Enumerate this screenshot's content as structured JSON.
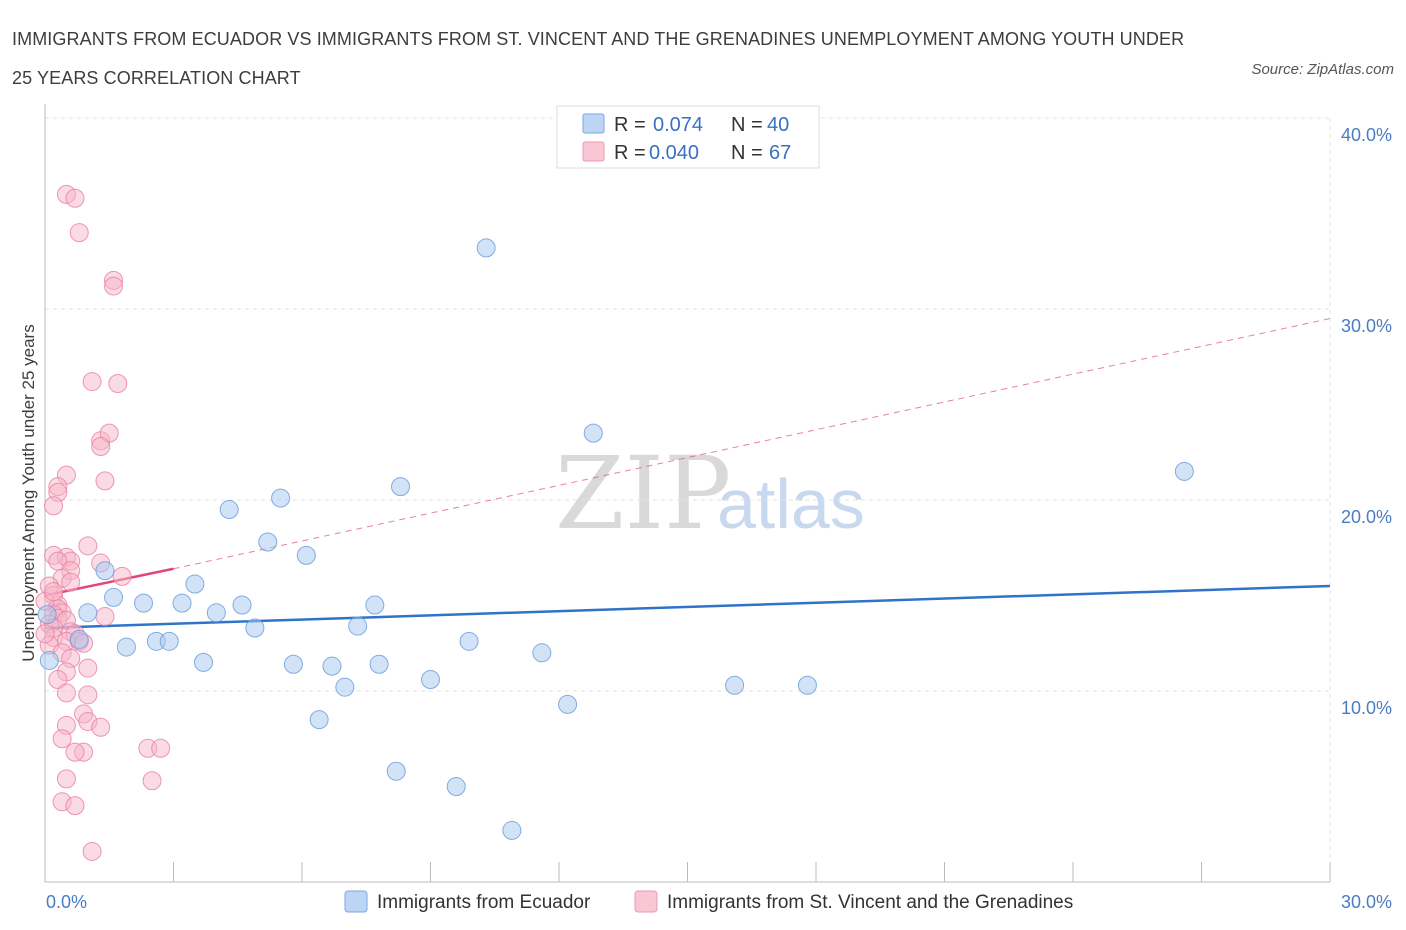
{
  "header": {
    "title": "IMMIGRANTS FROM ECUADOR VS IMMIGRANTS FROM ST. VINCENT AND THE GRENADINES UNEMPLOYMENT AMONG YOUTH UNDER 25 YEARS CORRELATION CHART",
    "source": "Source: ZipAtlas.com"
  },
  "watermark": {
    "zip": "ZIP",
    "atlas": "atlas"
  },
  "colors": {
    "blue_fill": "#a8c8f0",
    "blue_stroke": "#6f9fdc",
    "blue_line": "#2f74c8",
    "pink_fill": "#f6b5c9",
    "pink_stroke": "#e8809f",
    "pink_line": "#e0487a",
    "grid": "#e3e3e3",
    "tick_text": "#4a7cc4"
  },
  "chart_data": {
    "type": "scatter",
    "title": "IMMIGRANTS FROM ECUADOR VS IMMIGRANTS FROM ST. VINCENT AND THE GRENADINES UNEMPLOYMENT AMONG YOUTH UNDER 25 YEARS CORRELATION CHART",
    "xlabel": "",
    "ylabel": "Unemployment Among Youth under 25 years",
    "xlim": [
      0,
      30
    ],
    "ylim": [
      0,
      40
    ],
    "x_tick_labels": [
      "0.0%",
      "30.0%"
    ],
    "y_ticks": [
      10,
      20,
      30,
      40
    ],
    "y_tick_labels": [
      "10.0%",
      "20.0%",
      "30.0%",
      "40.0%"
    ],
    "grid": true,
    "legend_position": "top-center",
    "legend": [
      {
        "r_label": "R =",
        "r_value": "0.074",
        "n_label": "N =",
        "n_value": "40"
      },
      {
        "r_label": "R =",
        "r_value": "0.040",
        "n_label": "N =",
        "n_value": "67"
      }
    ],
    "series": [
      {
        "name": "Immigrants from Ecuador",
        "color": "#a8c8f0",
        "trend": {
          "x": [
            0,
            30
          ],
          "y": [
            13.3,
            15.5
          ],
          "style": "solid"
        },
        "points": [
          [
            0.1,
            11.6
          ],
          [
            0.8,
            12.7
          ],
          [
            1.0,
            14.1
          ],
          [
            1.4,
            16.3
          ],
          [
            1.6,
            14.9
          ],
          [
            1.9,
            12.3
          ],
          [
            2.3,
            14.6
          ],
          [
            2.6,
            12.6
          ],
          [
            2.9,
            12.6
          ],
          [
            3.2,
            14.6
          ],
          [
            3.5,
            15.6
          ],
          [
            3.7,
            11.5
          ],
          [
            4.0,
            14.1
          ],
          [
            4.3,
            19.5
          ],
          [
            4.6,
            14.5
          ],
          [
            4.9,
            13.3
          ],
          [
            5.2,
            17.8
          ],
          [
            5.5,
            20.1
          ],
          [
            5.8,
            11.4
          ],
          [
            6.1,
            17.1
          ],
          [
            6.4,
            8.5
          ],
          [
            6.7,
            11.3
          ],
          [
            7.0,
            10.2
          ],
          [
            7.3,
            13.4
          ],
          [
            7.7,
            14.5
          ],
          [
            7.8,
            11.4
          ],
          [
            8.2,
            5.8
          ],
          [
            8.3,
            20.7
          ],
          [
            9.0,
            10.6
          ],
          [
            9.6,
            5.0
          ],
          [
            9.9,
            12.6
          ],
          [
            10.3,
            33.2
          ],
          [
            10.9,
            2.7
          ],
          [
            11.6,
            12.0
          ],
          [
            12.2,
            9.3
          ],
          [
            12.8,
            23.5
          ],
          [
            16.1,
            10.3
          ],
          [
            17.8,
            10.3
          ],
          [
            26.6,
            21.5
          ],
          [
            0.05,
            14.0
          ]
        ]
      },
      {
        "name": "Immigrants from St. Vincent and the Grenadines",
        "color": "#f6b5c9",
        "trend": {
          "x": [
            0,
            3.0
          ],
          "y": [
            15.0,
            16.4
          ],
          "style": "solid",
          "extended_x": [
            3.0,
            30
          ],
          "extended_y": [
            16.4,
            29.5
          ],
          "extended_style": "dashed"
        },
        "points": [
          [
            0.5,
            36.0
          ],
          [
            0.7,
            35.8
          ],
          [
            0.8,
            34.0
          ],
          [
            1.6,
            31.5
          ],
          [
            1.6,
            31.2
          ],
          [
            1.1,
            26.2
          ],
          [
            1.7,
            26.1
          ],
          [
            1.3,
            23.1
          ],
          [
            1.5,
            23.5
          ],
          [
            1.3,
            22.8
          ],
          [
            1.4,
            21.0
          ],
          [
            0.5,
            21.3
          ],
          [
            0.3,
            20.7
          ],
          [
            0.3,
            20.4
          ],
          [
            0.2,
            19.7
          ],
          [
            1.0,
            17.6
          ],
          [
            0.2,
            17.1
          ],
          [
            0.5,
            17.0
          ],
          [
            0.6,
            16.8
          ],
          [
            0.3,
            16.8
          ],
          [
            1.3,
            16.7
          ],
          [
            0.6,
            16.3
          ],
          [
            0.4,
            15.9
          ],
          [
            1.8,
            16.0
          ],
          [
            0.6,
            15.7
          ],
          [
            0.1,
            15.5
          ],
          [
            0.2,
            15.0
          ],
          [
            0.3,
            14.5
          ],
          [
            0.3,
            14.3
          ],
          [
            0.4,
            14.1
          ],
          [
            0.2,
            14.0
          ],
          [
            0.3,
            13.8
          ],
          [
            0.5,
            13.7
          ],
          [
            0.1,
            13.5
          ],
          [
            0.2,
            13.3
          ],
          [
            0.6,
            13.1
          ],
          [
            0.7,
            13.0
          ],
          [
            0.2,
            12.8
          ],
          [
            0.5,
            12.6
          ],
          [
            0.8,
            12.6
          ],
          [
            0.1,
            12.4
          ],
          [
            0.4,
            12.0
          ],
          [
            0.6,
            11.7
          ],
          [
            1.0,
            11.2
          ],
          [
            0.5,
            11.0
          ],
          [
            0.3,
            10.6
          ],
          [
            0.5,
            9.9
          ],
          [
            1.0,
            9.8
          ],
          [
            0.9,
            8.8
          ],
          [
            1.0,
            8.4
          ],
          [
            0.5,
            8.2
          ],
          [
            1.3,
            8.1
          ],
          [
            0.4,
            7.5
          ],
          [
            0.9,
            6.8
          ],
          [
            0.7,
            6.8
          ],
          [
            2.4,
            7.0
          ],
          [
            2.7,
            7.0
          ],
          [
            0.5,
            5.4
          ],
          [
            2.5,
            5.3
          ],
          [
            0.4,
            4.2
          ],
          [
            0.7,
            4.0
          ],
          [
            1.1,
            1.6
          ],
          [
            1.4,
            13.9
          ],
          [
            0.0,
            14.7
          ],
          [
            0.0,
            13.0
          ],
          [
            0.9,
            12.5
          ],
          [
            0.2,
            15.2
          ]
        ]
      }
    ]
  },
  "axis": {
    "ylabel": "Unemployment Among Youth under 25 years"
  }
}
